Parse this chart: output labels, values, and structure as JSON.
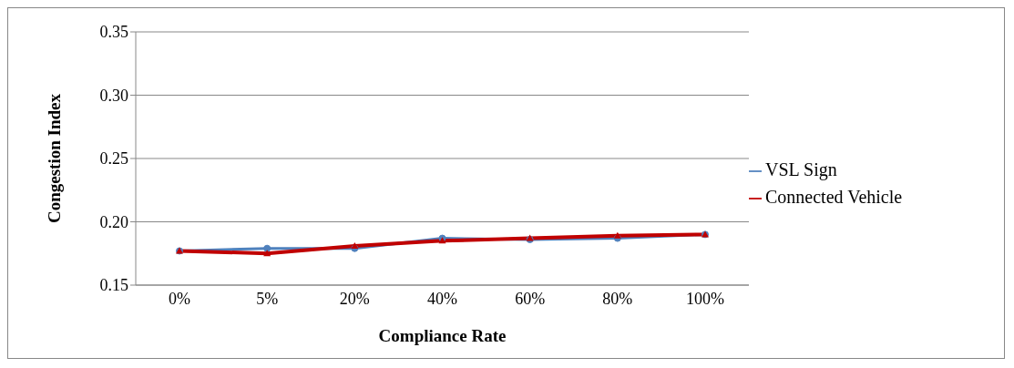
{
  "chart_data": {
    "type": "line",
    "xlabel": "Compliance Rate",
    "ylabel": "Congestion Index",
    "categories": [
      "0%",
      "5%",
      "20%",
      "40%",
      "60%",
      "80%",
      "100%"
    ],
    "series": [
      {
        "name": "VSL Sign",
        "color": "#4f81bd",
        "marker": "circle",
        "values": [
          0.177,
          0.179,
          0.179,
          0.187,
          0.186,
          0.187,
          0.19
        ]
      },
      {
        "name": "Connected Vehicle",
        "color": "#c00000",
        "marker": "triangle",
        "values": [
          0.177,
          0.175,
          0.181,
          0.185,
          0.187,
          0.189,
          0.19
        ]
      }
    ],
    "ylim": [
      0.15,
      0.35
    ],
    "yticks": [
      {
        "value": 0.15,
        "label": "0.15"
      },
      {
        "value": 0.2,
        "label": "0.20"
      },
      {
        "value": 0.25,
        "label": "0.25"
      },
      {
        "value": 0.3,
        "label": "0.30"
      },
      {
        "value": 0.35,
        "label": "0.35"
      }
    ],
    "grid": "y",
    "legend": "right"
  }
}
